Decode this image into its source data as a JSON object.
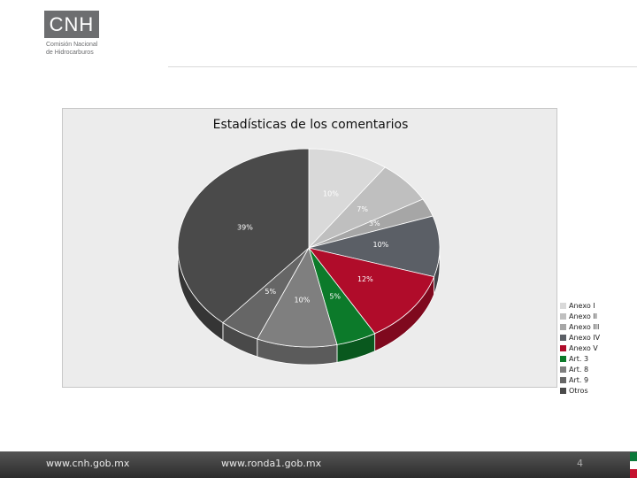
{
  "header": {
    "logo_text": "CNH",
    "logo_line1": "Comisión Nacional",
    "logo_line2": "de Hidrocarburos"
  },
  "chart_data": {
    "type": "pie",
    "title": "Estadísticas de los comentarios",
    "categories": [
      "Anexo I",
      "Anexo II",
      "Anexo III",
      "Anexo IV",
      "Anexo V",
      "Art. 3",
      "Art. 8",
      "Art. 9",
      "Otros"
    ],
    "values": [
      10,
      7,
      3,
      10,
      12,
      5,
      10,
      5,
      39
    ],
    "labels": [
      "10%",
      "7%",
      "3%",
      "10%",
      "12%",
      "5%",
      "10%",
      "5%",
      "39%"
    ],
    "colors": [
      "#d9d9d9",
      "#bfbfbf",
      "#a6a6a6",
      "#5b5f66",
      "#b00c2a",
      "#0c7a2a",
      "#7f7f7f",
      "#666666",
      "#4a4a4a"
    ],
    "legend_position": "right"
  },
  "footer": {
    "link1": "www.cnh.gob.mx",
    "link2": "www.ronda1.gob.mx",
    "page_number": "4"
  }
}
